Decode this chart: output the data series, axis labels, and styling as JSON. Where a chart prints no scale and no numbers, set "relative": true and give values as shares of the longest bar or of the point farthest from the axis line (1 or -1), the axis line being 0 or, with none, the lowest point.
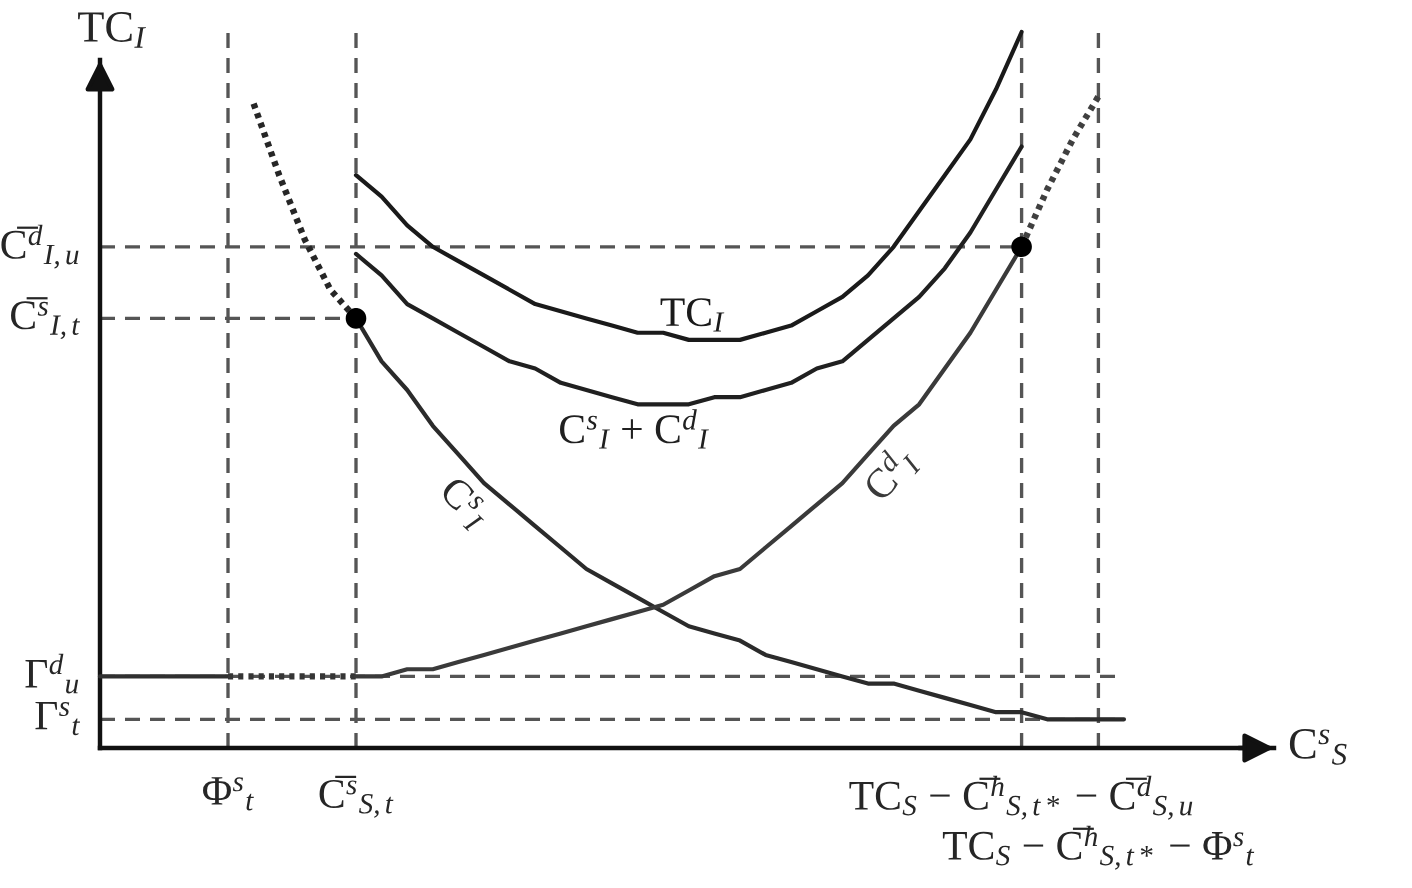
{
  "chart_data": {
    "type": "line",
    "relative": true,
    "grid": "x",
    "xlabel": "C$^{s}$$_{S}$",
    "ylabel": "TC$_{I}$",
    "categories": [
      null,
      null,
      null,
      null,
      null,
      "Φ$^{s}$$_{t}$",
      null,
      null,
      null,
      null,
      "C̅$^{s}$$_{S,t}$",
      null,
      null,
      null,
      null,
      null,
      null,
      null,
      null,
      null,
      null,
      null,
      null,
      null,
      null,
      null,
      null,
      null,
      null,
      null,
      null,
      null,
      null,
      null,
      null,
      null,
      "TC$_{S}$ − C̅$^{h}$$_{S,t*}$ − C̅$^{d}$$_{S,u}$",
      null,
      null,
      "TC$_{S}$ − C̅$^{h}$$_{S,t*}$ − Φ$^{s}$$_{t}$",
      null
    ],
    "series": [
      {
        "name": "TC$_{I}$",
        "line_style": "solid",
        "color": "#1a1a1a",
        "values": [
          null,
          null,
          null,
          null,
          null,
          null,
          null,
          null,
          null,
          null,
          0.8,
          0.77,
          0.73,
          0.7,
          0.68,
          0.66,
          0.64,
          0.62,
          0.61,
          0.6,
          0.59,
          0.58,
          0.58,
          0.57,
          0.57,
          0.57,
          0.58,
          0.59,
          0.61,
          0.63,
          0.66,
          0.7,
          0.75,
          0.8,
          0.85,
          0.92,
          1.0,
          null,
          null,
          null,
          null
        ]
      },
      {
        "name": "C$^{s}$$_{I}$ + C$^{d}$$_{I}$",
        "line_style": "solid",
        "color": "#202020",
        "values": [
          null,
          null,
          null,
          null,
          null,
          null,
          null,
          null,
          null,
          null,
          0.69,
          0.66,
          0.62,
          0.6,
          0.58,
          0.56,
          0.54,
          0.53,
          0.51,
          0.5,
          0.49,
          0.48,
          0.48,
          0.48,
          0.49,
          0.49,
          0.5,
          0.51,
          0.53,
          0.54,
          0.57,
          0.6,
          0.63,
          0.67,
          0.72,
          0.78,
          0.84,
          null,
          null,
          null,
          null
        ]
      },
      {
        "line_style": "dotted",
        "color": "#262626",
        "values": [
          null,
          null,
          null,
          null,
          null,
          null,
          0.9,
          0.8,
          0.71,
          0.64,
          0.6,
          null,
          null,
          null,
          null,
          null,
          null,
          null,
          null,
          null,
          null,
          null,
          null,
          null,
          null,
          null,
          null,
          null,
          null,
          null,
          null,
          null,
          null,
          null,
          null,
          null,
          null,
          null,
          null,
          null,
          null
        ]
      },
      {
        "name": "C$^{s}$$_{I}$",
        "line_style": "solid",
        "color": "#2b2b2b",
        "values": [
          null,
          null,
          null,
          null,
          null,
          null,
          null,
          null,
          null,
          null,
          0.6,
          0.54,
          0.5,
          0.45,
          0.41,
          0.37,
          0.34,
          0.31,
          0.28,
          0.25,
          0.23,
          0.21,
          0.19,
          0.17,
          0.16,
          0.15,
          0.13,
          0.12,
          0.11,
          0.1,
          0.09,
          0.09,
          0.08,
          0.07,
          0.06,
          0.05,
          0.05,
          0.04,
          0.04,
          0.04,
          0.04
        ]
      },
      {
        "line_style": "solid",
        "color": "#303030",
        "values": [
          0.1,
          0.1,
          0.1,
          0.1,
          0.1,
          0.1,
          null,
          null,
          null,
          null,
          null,
          null,
          null,
          null,
          null,
          null,
          null,
          null,
          null,
          null,
          null,
          null,
          null,
          null,
          null,
          null,
          null,
          null,
          null,
          null,
          null,
          null,
          null,
          null,
          null,
          null,
          null,
          null,
          null,
          null,
          null
        ]
      },
      {
        "line_style": "dotted",
        "color": "#353535",
        "values": [
          null,
          null,
          null,
          null,
          null,
          0.1,
          0.1,
          0.1,
          0.1,
          0.1,
          0.1,
          null,
          null,
          null,
          null,
          null,
          null,
          null,
          null,
          null,
          null,
          null,
          null,
          null,
          null,
          null,
          null,
          null,
          null,
          null,
          null,
          null,
          null,
          null,
          null,
          null,
          null,
          null,
          null,
          null,
          null
        ]
      },
      {
        "name": "C$^{d}$$_{I}$",
        "line_style": "solid",
        "color": "#3a3a3a",
        "values": [
          null,
          null,
          null,
          null,
          null,
          null,
          null,
          null,
          null,
          null,
          0.1,
          0.1,
          0.11,
          0.11,
          0.12,
          0.13,
          0.14,
          0.15,
          0.16,
          0.17,
          0.18,
          0.19,
          0.2,
          0.22,
          0.24,
          0.25,
          0.28,
          0.31,
          0.34,
          0.37,
          0.41,
          0.45,
          0.48,
          0.53,
          0.58,
          0.64,
          0.7,
          null,
          null,
          null,
          null
        ]
      },
      {
        "line_style": "dotted",
        "color": "#404040",
        "values": [
          null,
          null,
          null,
          null,
          null,
          null,
          null,
          null,
          null,
          null,
          null,
          null,
          null,
          null,
          null,
          null,
          null,
          null,
          null,
          null,
          null,
          null,
          null,
          null,
          null,
          null,
          null,
          null,
          null,
          null,
          null,
          null,
          null,
          null,
          null,
          null,
          0.7,
          0.78,
          0.85,
          0.91,
          null
        ]
      },
      {
        "type": "scatter",
        "marker": "circle",
        "color": "#000000",
        "values": [
          null,
          null,
          null,
          null,
          null,
          null,
          null,
          null,
          null,
          null,
          0.6,
          null,
          null,
          null,
          null,
          null,
          null,
          null,
          null,
          null,
          null,
          null,
          null,
          null,
          null,
          null,
          null,
          null,
          null,
          null,
          null,
          null,
          null,
          null,
          null,
          null,
          0.7,
          null,
          null,
          null,
          null
        ]
      }
    ],
    "ref_lines": [
      {
        "axis": "y",
        "value": 0.7,
        "label": "C̅$^{d}$$_{I,u}$",
        "color": "#555555",
        "line_style": "dashed"
      },
      {
        "axis": "y",
        "value": 0.6,
        "label": "C̅$^{s}$$_{I,t}$",
        "color": "#555555",
        "line_style": "dashed"
      },
      {
        "axis": "y",
        "value": 0.1,
        "label": "Γ$^{d}$$_{u}$",
        "color": "#555555",
        "line_style": "dashed"
      },
      {
        "axis": "y",
        "value": 0.04,
        "label": "Γ$^{s}$$_{t}$",
        "color": "#555555",
        "line_style": "dashed"
      }
    ]
  }
}
